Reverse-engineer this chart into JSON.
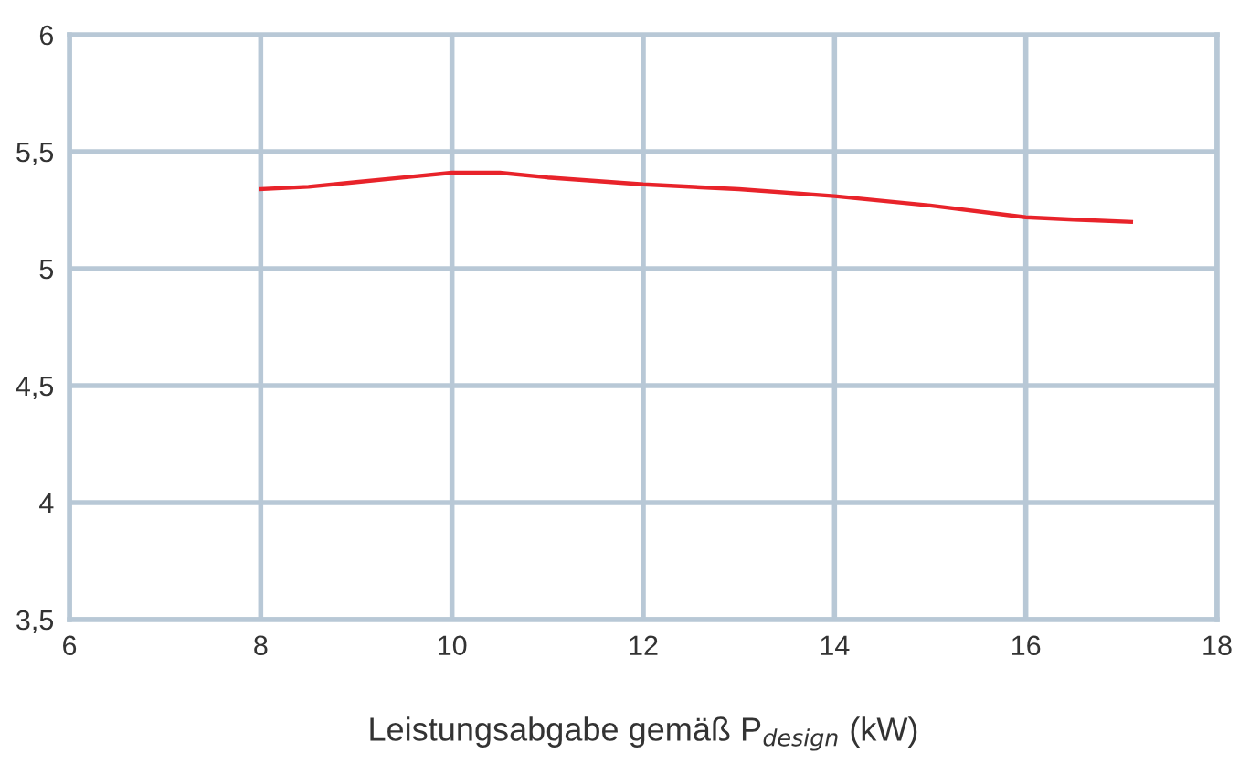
{
  "chart_data": {
    "type": "line",
    "xlabel": "Leistungsabgabe gemäß P$_{design}$ (kW)",
    "x": [
      8,
      8.5,
      9,
      9.5,
      10,
      10.5,
      11,
      12,
      13,
      14,
      15,
      16,
      16.5,
      17.1
    ],
    "series": [
      {
        "color": "#e8232a",
        "values": [
          5.34,
          5.35,
          5.37,
          5.39,
          5.41,
          5.41,
          5.39,
          5.36,
          5.34,
          5.31,
          5.27,
          5.22,
          5.21,
          5.2
        ]
      }
    ],
    "xlim": [
      6,
      18
    ],
    "xticks": [
      6,
      8,
      10,
      12,
      14,
      16,
      18
    ],
    "ylim": [
      3.5,
      6
    ],
    "yticks": [
      {
        "value": 3.5,
        "label": "3,5"
      },
      4,
      {
        "value": 4.5,
        "label": "4,5"
      },
      5,
      {
        "value": 5.5,
        "label": "5,5"
      },
      6
    ],
    "grid": true,
    "marker": "none",
    "line_style": "solid"
  }
}
